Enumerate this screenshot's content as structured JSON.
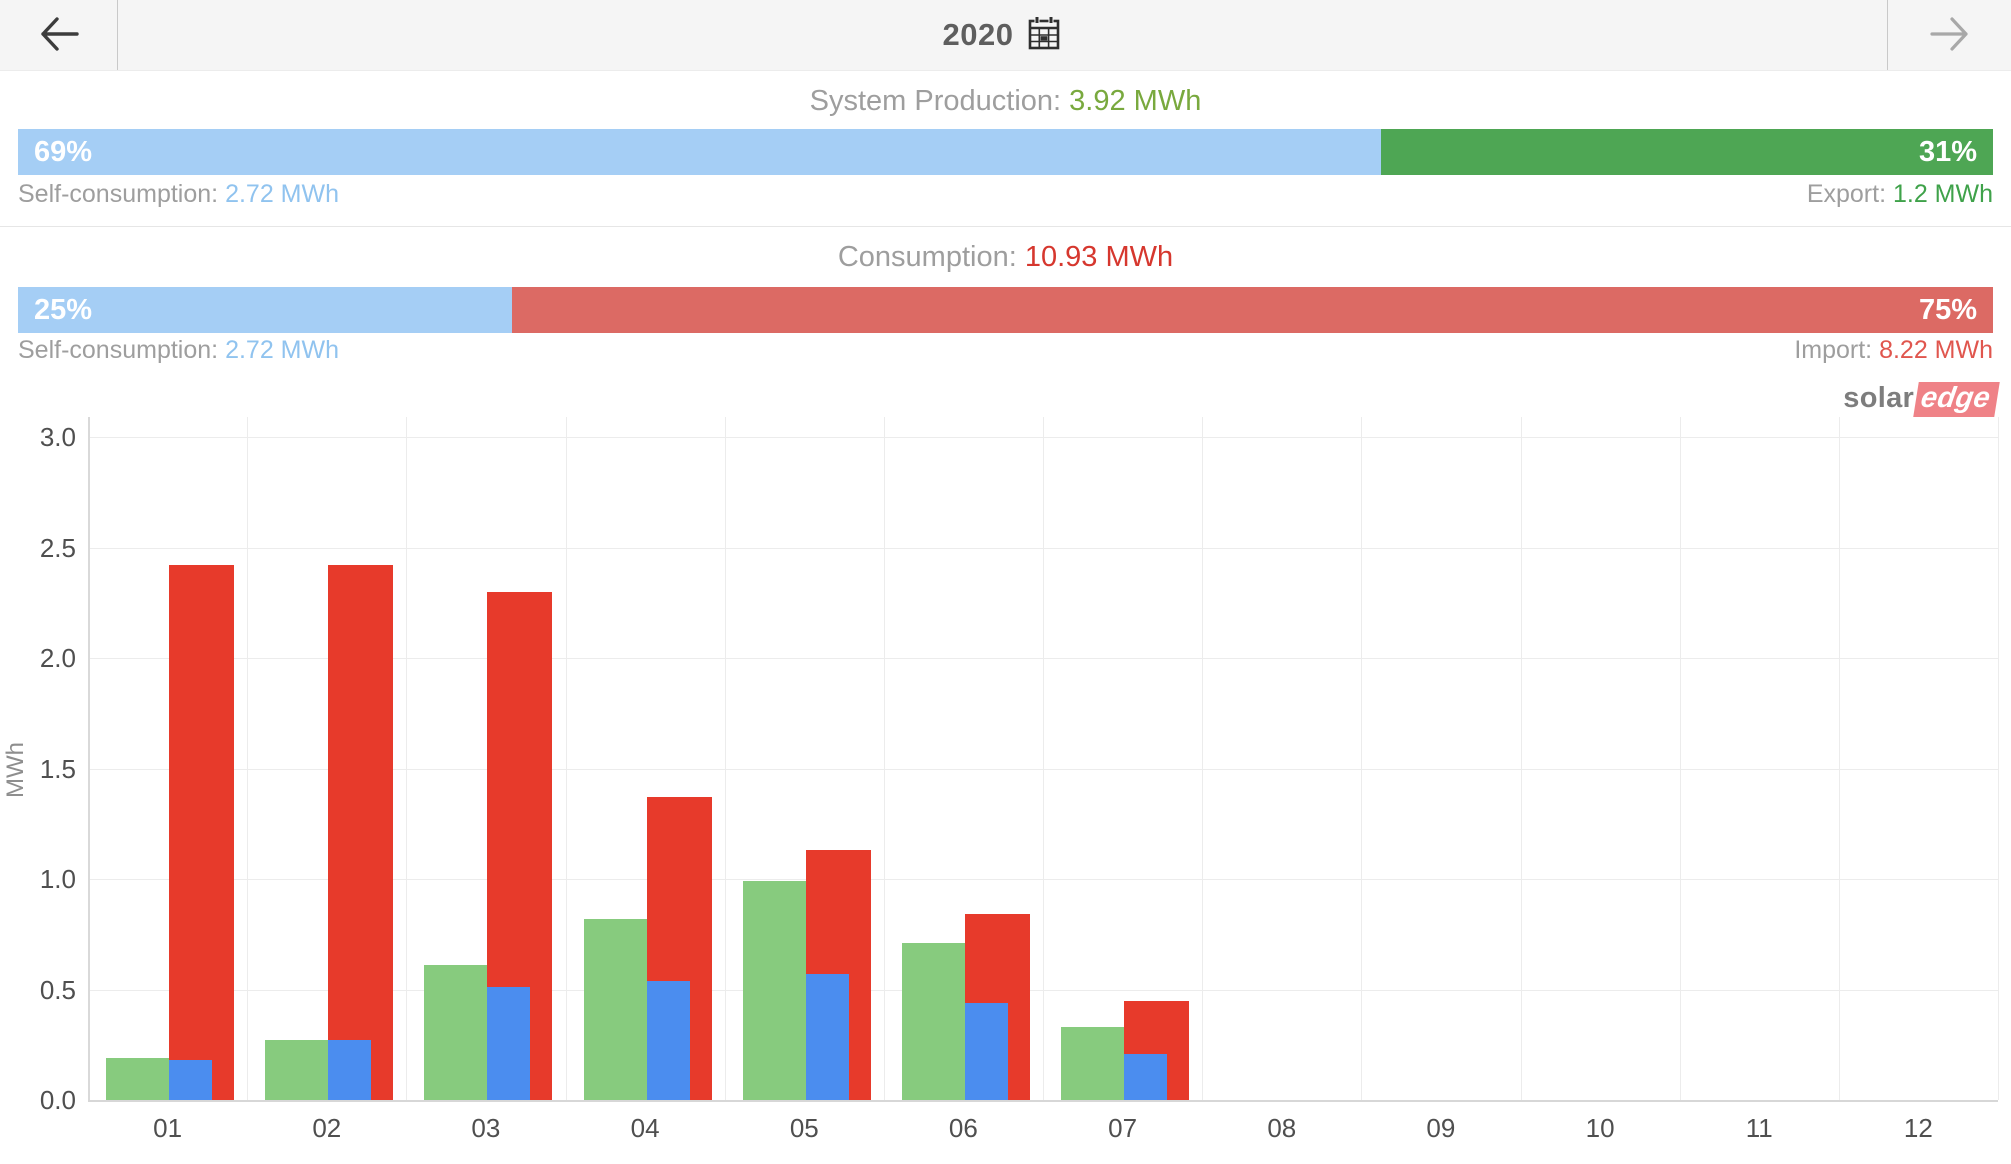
{
  "header": {
    "year": "2020",
    "back_icon": "arrow-left",
    "forward_icon": "arrow-right",
    "calendar_icon": "calendar"
  },
  "production": {
    "title": "System Production:",
    "value": "3.92 MWh",
    "self_pct": 69,
    "self_pct_label": "69%",
    "export_pct_label": "31%",
    "self_label": "Self-consumption:",
    "self_value": "2.72 MWh",
    "export_label": "Export:",
    "export_value": "1.2 MWh"
  },
  "consumption": {
    "title": "Consumption:",
    "value": "10.93 MWh",
    "self_pct": 25,
    "self_pct_label": "25%",
    "import_pct_label": "75%",
    "self_label": "Self-consumption:",
    "self_value": "2.72 MWh",
    "import_label": "Import:",
    "import_value": "8.22 MWh"
  },
  "logo": {
    "solar": "solar",
    "edge": "edge"
  },
  "colors": {
    "header_bg": "#f5f5f5",
    "self_consumption_light_blue": "#a5cef5",
    "export_green": "#4ea654",
    "import_red": "#dc6a64",
    "production_text_green": "#79a93e",
    "consumption_text_red": "#d6372e",
    "export_text_green": "#3fa24a",
    "import_text_red": "#e0564e",
    "self_value_text_blue": "#90c3ef",
    "chart_production_green": "#87cb7e",
    "chart_self_consumption_blue": "#4b8def",
    "chart_consumption_red": "#e73a2b"
  },
  "chart_data": {
    "type": "bar",
    "title": "",
    "xlabel": "",
    "ylabel": "MWh",
    "ylim": [
      0,
      3.0
    ],
    "ytick_step": 0.5,
    "grid": true,
    "legend": "none",
    "categories": [
      "01",
      "02",
      "03",
      "04",
      "05",
      "06",
      "07",
      "08",
      "09",
      "10",
      "11",
      "12"
    ],
    "series": [
      {
        "name": "production",
        "color": "#87cb7e",
        "values": [
          0.19,
          0.27,
          0.61,
          0.82,
          0.99,
          0.71,
          0.33,
          null,
          null,
          null,
          null,
          null
        ]
      },
      {
        "name": "self-consumption",
        "color": "#4b8def",
        "values": [
          0.18,
          0.27,
          0.51,
          0.54,
          0.57,
          0.44,
          0.21,
          null,
          null,
          null,
          null,
          null
        ]
      },
      {
        "name": "consumption",
        "color": "#e73a2b",
        "values": [
          2.42,
          2.42,
          2.3,
          1.37,
          1.13,
          0.84,
          0.45,
          null,
          null,
          null,
          null,
          null
        ]
      }
    ]
  }
}
